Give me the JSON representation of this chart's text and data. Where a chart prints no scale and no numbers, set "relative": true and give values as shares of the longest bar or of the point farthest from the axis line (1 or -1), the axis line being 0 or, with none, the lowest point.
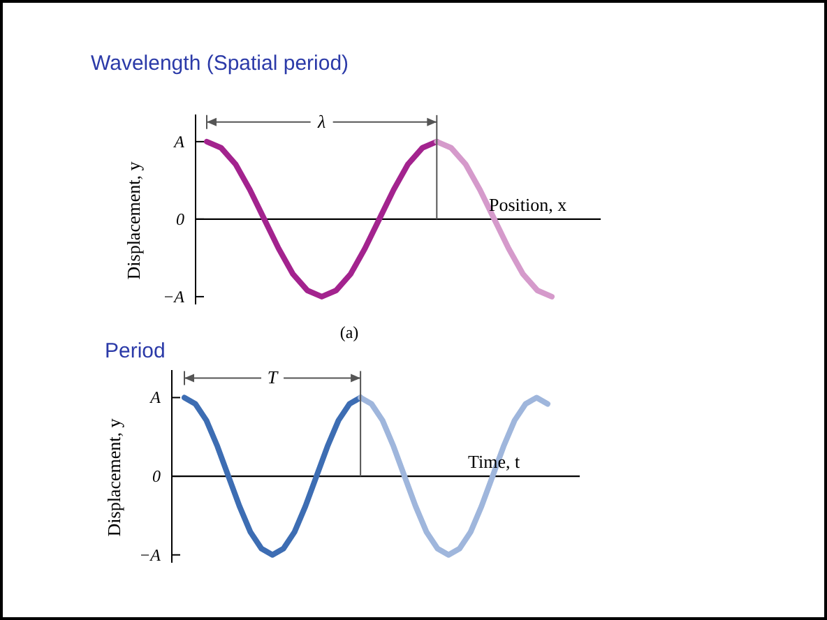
{
  "chart_data": [
    {
      "type": "line",
      "relative": true,
      "title": "Wavelength (Spatial period)",
      "xlabel": "Position, x",
      "ylabel": "Displacement, y",
      "categories": [
        null,
        null,
        null,
        null,
        null,
        null,
        null,
        null,
        null,
        null,
        null,
        null,
        null,
        null,
        null,
        null,
        null,
        null,
        null,
        null,
        null,
        null,
        null,
        null,
        null
      ],
      "annotations": [
        "A",
        "0",
        "−A",
        "λ",
        "(a)"
      ],
      "series": [
        {
          "color": "#a3238e",
          "values": [
            1,
            0.92,
            0.71,
            0.38,
            0,
            -0.38,
            -0.71,
            -0.92,
            -1,
            -0.92,
            -0.71,
            -0.38,
            0,
            0.38,
            0.71,
            0.92,
            1,
            null,
            null,
            null,
            null,
            null,
            null,
            null,
            null
          ]
        },
        {
          "color": "#d59acb",
          "values": [
            null,
            null,
            null,
            null,
            null,
            null,
            null,
            null,
            null,
            null,
            null,
            null,
            null,
            null,
            null,
            null,
            1,
            0.92,
            0.71,
            0.38,
            0,
            -0.38,
            -0.71,
            -0.92,
            -1
          ]
        }
      ]
    },
    {
      "type": "line",
      "relative": true,
      "title": "Period",
      "xlabel": "Time, t",
      "ylabel": "Displacement, y",
      "categories": [
        null,
        null,
        null,
        null,
        null,
        null,
        null,
        null,
        null,
        null,
        null,
        null,
        null,
        null,
        null,
        null,
        null,
        null,
        null,
        null,
        null,
        null,
        null,
        null,
        null,
        null,
        null,
        null,
        null,
        null,
        null,
        null,
        null,
        null
      ],
      "annotations": [
        "A",
        "0",
        "−A",
        "T"
      ],
      "series": [
        {
          "color": "#3d6db3",
          "values": [
            1,
            0.92,
            0.71,
            0.38,
            0,
            -0.38,
            -0.71,
            -0.92,
            -1,
            -0.92,
            -0.71,
            -0.38,
            0,
            0.38,
            0.71,
            0.92,
            1,
            null,
            null,
            null,
            null,
            null,
            null,
            null,
            null,
            null,
            null,
            null,
            null,
            null,
            null,
            null,
            null,
            null
          ]
        },
        {
          "color": "#9fb6dc",
          "values": [
            null,
            null,
            null,
            null,
            null,
            null,
            null,
            null,
            null,
            null,
            null,
            null,
            null,
            null,
            null,
            null,
            1,
            0.92,
            0.71,
            0.38,
            0,
            -0.38,
            -0.71,
            -0.92,
            -1,
            -0.92,
            -0.71,
            -0.38,
            0,
            0.38,
            0.71,
            0.92,
            1,
            0.92
          ]
        }
      ]
    }
  ]
}
